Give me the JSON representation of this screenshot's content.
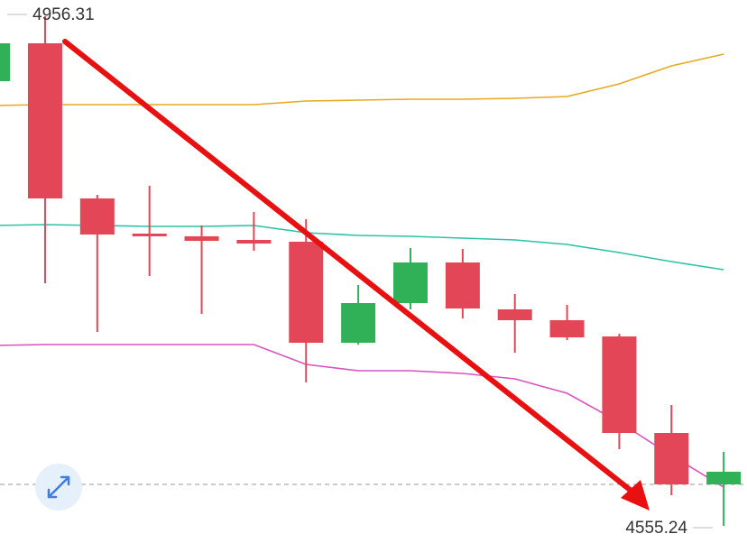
{
  "chart_data": {
    "type": "candlestick",
    "high_label": "4956.31",
    "low_label": "4555.24",
    "ylim": [
      4555.24,
      4956.31
    ],
    "up_color": "#30b158",
    "down_color": "#e34656",
    "open": [
      4905.2,
      4935.01,
      4812.92,
      4785.23,
      4783.1,
      4780.26,
      4778.84,
      4699.34,
      4730.57,
      4762.52,
      4725.61,
      4717.09,
      4704.31,
      4628.35,
      4587.89
    ],
    "high": [
      4935.01,
      4956.31,
      4815.76,
      4822.86,
      4791.62,
      4802.27,
      4796.59,
      4744.77,
      4773.88,
      4773.17,
      4737.67,
      4729.15,
      4706.44,
      4650.36,
      4613.45
    ],
    "low": [
      4905.2,
      4746.19,
      4707.86,
      4751.87,
      4722.06,
      4771.75,
      4668.11,
      4697.92,
      4725.61,
      4718.51,
      4691.53,
      4701.47,
      4615.58,
      4579.37,
      4555.24
    ],
    "close": [
      4935.01,
      4812.92,
      4784.52,
      4783.1,
      4779.55,
      4777.43,
      4699.34,
      4730.57,
      4762.52,
      4726.31,
      4717.09,
      4703.6,
      4628.35,
      4587.89,
      4597.83
    ],
    "price_line": 4587.89,
    "series": [
      {
        "color": "#e8a820",
        "values": [
          4886.03,
          4886.74,
          4886.74,
          4886.74,
          4886.74,
          4886.74,
          4889.58,
          4890.29,
          4891.0,
          4891.0,
          4891.71,
          4893.13,
          4903.07,
          4917.27,
          4926.5
        ]
      },
      {
        "color": "#2cc4a4",
        "values": [
          4791.62,
          4792.33,
          4791.62,
          4790.91,
          4790.91,
          4791.62,
          4785.94,
          4783.81,
          4783.1,
          4781.68,
          4780.26,
          4776.71,
          4770.33,
          4763.23,
          4756.84
        ]
      },
      {
        "color": "#d852c0",
        "values": [
          4697.21,
          4697.92,
          4697.92,
          4697.92,
          4697.92,
          4697.92,
          4682.3,
          4677.33,
          4677.33,
          4675.21,
          4670.95,
          4659.59,
          4636.87,
          4610.59,
          4585.76
        ]
      }
    ]
  }
}
